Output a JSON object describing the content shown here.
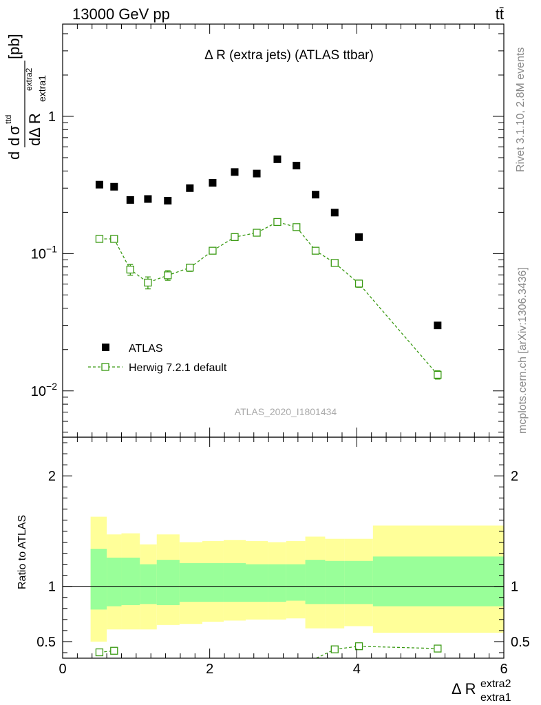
{
  "header": {
    "energy_label": "13000 GeV pp",
    "process_label": "tt̄",
    "side_top": "Rivet 3.1.10,  2.8M events",
    "side_bottom": "mcplots.cern.ch [arXiv:1306.3436]"
  },
  "chart_data": [
    {
      "type": "scatter",
      "title": "Δ R (extra jets) (ATLAS ttbar)",
      "watermark": "ATLAS_2020_I1801434",
      "ylabel": "dσ^ttd / dΔ R_extra1^extra2 [pb]",
      "ylabel_parts": {
        "num_d": "d",
        "num_sigma": "σ",
        "num_sup": "ttd",
        "den": "dΔ R",
        "den_sub": "extra1",
        "den_sup": "extra2",
        "unit": "[pb]"
      },
      "yscale": "log",
      "ylim": [
        0.0046,
        4.7
      ],
      "xlim": [
        0,
        6
      ],
      "yticks": [
        {
          "value": 1,
          "base": "1",
          "exp": ""
        },
        {
          "value": 0.1,
          "base": "10",
          "exp": "−1"
        },
        {
          "value": 0.01,
          "base": "10",
          "exp": "−2"
        }
      ],
      "legend_position": "lower-left",
      "series": [
        {
          "name": "ATLAS",
          "color": "#000000",
          "marker": "filled-square",
          "x": [
            0.5,
            0.7,
            0.92,
            1.16,
            1.43,
            1.73,
            2.04,
            2.34,
            2.64,
            2.92,
            3.18,
            3.44,
            3.7,
            4.03,
            5.1
          ],
          "y": [
            0.318,
            0.307,
            0.246,
            0.25,
            0.243,
            0.3,
            0.328,
            0.393,
            0.383,
            0.487,
            0.438,
            0.269,
            0.199,
            0.132,
            0.03
          ]
        },
        {
          "name": "Herwig 7.2.1 default",
          "color": "#3a9a13",
          "marker": "open-square-dashed-line",
          "x": [
            0.5,
            0.7,
            0.92,
            1.16,
            1.43,
            1.73,
            2.04,
            2.34,
            2.64,
            2.92,
            3.18,
            3.44,
            3.7,
            4.03,
            5.1
          ],
          "y": [
            0.128,
            0.128,
            0.0765,
            0.0615,
            0.0695,
            0.079,
            0.105,
            0.132,
            0.142,
            0.17,
            0.156,
            0.105,
            0.0855,
            0.0605,
            0.0131
          ],
          "yerr_frac": [
            0.05,
            0.05,
            0.09,
            0.1,
            0.08,
            0.06,
            0.04,
            0.04,
            0.04,
            0.03,
            0.03,
            0.04,
            0.05,
            0.06,
            0.07
          ]
        }
      ]
    },
    {
      "type": "area",
      "ylabel": "Ratio to ATLAS",
      "xlabel": "Δ R_extra1^extra2",
      "xlabel_parts": {
        "base": "Δ R",
        "sup": "extra2",
        "sub": "extra1"
      },
      "xlim": [
        0,
        6
      ],
      "xticks": [
        0,
        2,
        4,
        6
      ],
      "ylim": [
        0.35,
        2.35
      ],
      "yticks": [
        0.5,
        1,
        2
      ],
      "reference_line": 1,
      "bins": [
        {
          "lo": 0.38,
          "hi": 0.6,
          "inner": [
            0.79,
            1.34
          ],
          "outer": [
            0.5,
            1.63
          ]
        },
        {
          "lo": 0.6,
          "hi": 0.8,
          "inner": [
            0.82,
            1.26
          ],
          "outer": [
            0.61,
            1.47
          ]
        },
        {
          "lo": 0.8,
          "hi": 1.05,
          "inner": [
            0.83,
            1.26
          ],
          "outer": [
            0.61,
            1.48
          ]
        },
        {
          "lo": 1.05,
          "hi": 1.28,
          "inner": [
            0.84,
            1.2
          ],
          "outer": [
            0.61,
            1.38
          ]
        },
        {
          "lo": 1.28,
          "hi": 1.59,
          "inner": [
            0.83,
            1.24
          ],
          "outer": [
            0.65,
            1.47
          ]
        },
        {
          "lo": 1.59,
          "hi": 1.9,
          "inner": [
            0.86,
            1.21
          ],
          "outer": [
            0.66,
            1.4
          ]
        },
        {
          "lo": 1.9,
          "hi": 2.19,
          "inner": [
            0.86,
            1.21
          ],
          "outer": [
            0.68,
            1.41
          ]
        },
        {
          "lo": 2.19,
          "hi": 2.49,
          "inner": [
            0.86,
            1.21
          ],
          "outer": [
            0.69,
            1.42
          ]
        },
        {
          "lo": 2.49,
          "hi": 2.79,
          "inner": [
            0.86,
            1.2
          ],
          "outer": [
            0.7,
            1.41
          ]
        },
        {
          "lo": 2.79,
          "hi": 3.04,
          "inner": [
            0.86,
            1.2
          ],
          "outer": [
            0.7,
            1.4
          ]
        },
        {
          "lo": 3.04,
          "hi": 3.3,
          "inner": [
            0.87,
            1.2
          ],
          "outer": [
            0.71,
            1.41
          ]
        },
        {
          "lo": 3.3,
          "hi": 3.57,
          "inner": [
            0.84,
            1.24
          ],
          "outer": [
            0.62,
            1.45
          ]
        },
        {
          "lo": 3.57,
          "hi": 3.83,
          "inner": [
            0.84,
            1.23
          ],
          "outer": [
            0.62,
            1.43
          ]
        },
        {
          "lo": 3.83,
          "hi": 4.22,
          "inner": [
            0.84,
            1.23
          ],
          "outer": [
            0.64,
            1.43
          ]
        },
        {
          "lo": 4.22,
          "hi": 6.0,
          "inner": [
            0.82,
            1.27
          ],
          "outer": [
            0.58,
            1.55
          ]
        }
      ],
      "series": [
        {
          "name": "Herwig 7.2.1 default",
          "color": "#3a9a13",
          "x": [
            0.5,
            0.7,
            3.7,
            4.03,
            5.1
          ],
          "y": [
            0.403,
            0.417,
            0.43,
            0.458,
            0.437
          ],
          "yerr": [
            0.025,
            0.03,
            0.03,
            0.03,
            0.025
          ]
        },
        {
          "name": "",
          "color": "#3a9a13",
          "x": [
            3.45,
            3.7
          ],
          "y": [
            0.32,
            0.43
          ]
        }
      ]
    }
  ]
}
